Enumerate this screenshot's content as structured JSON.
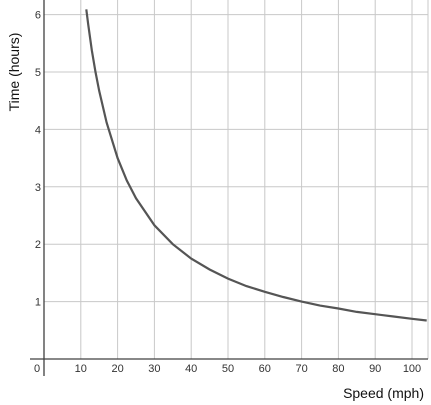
{
  "chart_data": {
    "type": "line",
    "xlabel": "Speed (mph)",
    "ylabel": "Time (hours)",
    "xlim": [
      0,
      104
    ],
    "ylim": [
      0,
      6.2
    ],
    "x_ticks": [
      0,
      10,
      20,
      30,
      40,
      50,
      60,
      70,
      80,
      90,
      100
    ],
    "x_tick_labels": [
      "0",
      "10",
      "20",
      "30",
      "40",
      "50",
      "60",
      "70",
      "80",
      "90",
      "100"
    ],
    "y_ticks": [
      1,
      2,
      3,
      4,
      5,
      6
    ],
    "y_tick_labels": [
      "1",
      "2",
      "3",
      "4",
      "5",
      "6"
    ],
    "grid": true,
    "legend": "none",
    "series": [
      {
        "x": [
          11.5,
          12,
          13,
          14,
          15,
          17,
          20,
          22.5,
          25,
          30,
          35,
          40,
          45,
          50,
          55,
          60,
          65,
          70,
          75,
          80,
          85,
          90,
          95,
          100,
          104
        ],
        "y": [
          6.09,
          5.83,
          5.38,
          5.0,
          4.67,
          4.12,
          3.5,
          3.11,
          2.8,
          2.33,
          2.0,
          1.75,
          1.56,
          1.4,
          1.27,
          1.17,
          1.08,
          1.0,
          0.93,
          0.88,
          0.82,
          0.78,
          0.74,
          0.7,
          0.67
        ]
      }
    ],
    "color": "#555555"
  }
}
